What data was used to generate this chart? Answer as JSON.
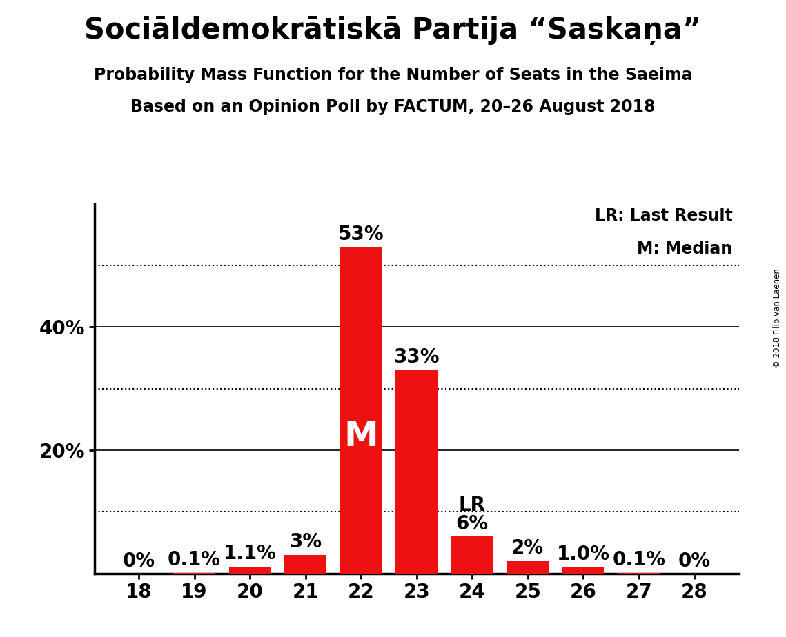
{
  "title": "Sociāldemokrātiskā Partija “Saskaņa”",
  "subtitle1": "Probability Mass Function for the Number of Seats in the Saeima",
  "subtitle2": "Based on an Opinion Poll by FACTUM, 20–26 August 2018",
  "copyright": "© 2018 Filip van Laenen",
  "seats": [
    18,
    19,
    20,
    21,
    22,
    23,
    24,
    25,
    26,
    27,
    28
  ],
  "values": [
    0.0,
    0.1,
    1.1,
    3.0,
    53.0,
    33.0,
    6.0,
    2.0,
    1.0,
    0.1,
    0.0
  ],
  "labels": [
    "0%",
    "0.1%",
    "1.1%",
    "3%",
    "53%",
    "33%",
    "6%",
    "2%",
    "1.0%",
    "0.1%",
    "0%"
  ],
  "bar_color": "#ee1111",
  "median_seat": 22,
  "lr_seat": 24,
  "ylim": [
    0,
    60
  ],
  "solid_lines": [
    20,
    40
  ],
  "dotted_lines": [
    10,
    30,
    50
  ],
  "ytick_positions": [
    20,
    40
  ],
  "ytick_labels": [
    "20%",
    "40%"
  ],
  "legend_lr": "LR: Last Result",
  "legend_m": "M: Median",
  "bg_color": "#ffffff",
  "title_fontsize": 30,
  "subtitle_fontsize": 17,
  "bar_label_fontsize": 20,
  "axis_tick_fontsize": 20,
  "legend_fontsize": 17
}
